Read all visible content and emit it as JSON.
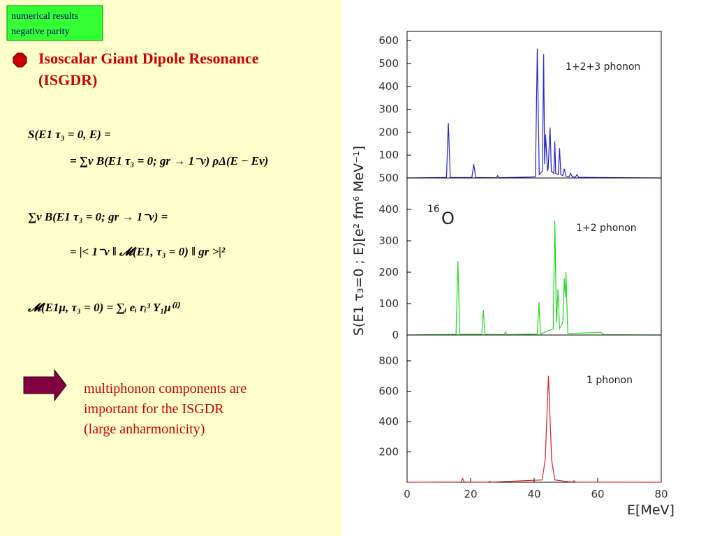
{
  "tag_box": [
    "numerical results",
    "negative parity"
  ],
  "heading": [
    "Isoscalar Giant Dipole Resonance",
    "(ISGDR)"
  ],
  "equations": [
    "S(E1 τ₃ = 0, E) =",
    "= ∑ν B(E1 τ₃ = 0; gr → 1⁻ν) ρΔ(E − Eν)",
    "∑ν B(E1 τ₃ = 0; gr → 1⁻ν) =",
    "= |< 1⁻ν ‖ 𝓜(E1, τ₃ = 0) ‖ gr >|²",
    "𝓜(E1μ, τ₃ = 0) = ∑ᵢ eᵢ rᵢ³ Y₁μ⁽ⁱ⁾"
  ],
  "note": [
    "multiphonon components are",
    "important for the ISGDR",
    "(large anharmonicity)"
  ],
  "figure": {
    "ylabel": "S(E1 τ₃=0 ; E)[e² fm⁶ MeV⁻¹]",
    "xlabel": "E[MeV]",
    "annotation": {
      "mass": "16",
      "symbol": "O"
    }
  },
  "chart_data": [
    {
      "type": "line",
      "label": "1+2+3 phonon",
      "color": "#2323c8",
      "x": [
        0,
        12.4,
        13,
        13.6,
        20.4,
        21,
        21.6,
        28,
        28.5,
        29,
        40.4,
        41,
        41.6,
        42.6,
        43,
        43.3,
        43.6,
        44.2,
        44.4,
        45,
        45.4,
        46.2,
        46.5,
        46.8,
        47.6,
        48,
        48.4,
        49,
        49.5,
        50,
        51,
        51.5,
        52,
        53,
        53.5,
        54,
        60,
        80
      ],
      "values": [
        0,
        2,
        240,
        2,
        2,
        60,
        2,
        1,
        10,
        1,
        5,
        565,
        15,
        30,
        540,
        60,
        190,
        30,
        40,
        220,
        30,
        20,
        160,
        20,
        15,
        130,
        15,
        10,
        40,
        8,
        5,
        20,
        5,
        4,
        15,
        3,
        2,
        0
      ],
      "xlim": [
        0,
        80
      ],
      "ylim": [
        0,
        640
      ],
      "yticks": [
        100,
        200,
        300,
        400,
        500,
        600
      ]
    },
    {
      "type": "line",
      "label": "1+2 phonon",
      "color": "#22d822",
      "x": [
        0,
        15.4,
        16,
        16.6,
        23.5,
        24,
        24.5,
        30.5,
        31,
        31.5,
        41,
        41.5,
        42,
        46,
        46.5,
        47,
        47.5,
        48,
        49,
        49.5,
        49.8,
        50,
        50.6,
        61,
        62,
        80
      ],
      "values": [
        0,
        2,
        235,
        2,
        2,
        80,
        2,
        1,
        10,
        1,
        3,
        105,
        3,
        20,
        365,
        40,
        145,
        20,
        40,
        180,
        120,
        200,
        5,
        8,
        1,
        0
      ],
      "xlim": [
        0,
        80
      ],
      "ylim": [
        0,
        500
      ],
      "yticks": [
        0,
        100,
        200,
        300,
        400,
        500
      ]
    },
    {
      "type": "line",
      "label": "1 phonon",
      "color": "#d82222",
      "x": [
        0,
        17,
        17.5,
        18,
        25.5,
        26,
        26.5,
        42.5,
        43.5,
        44.5,
        45.5,
        46.5,
        52,
        52.5,
        53,
        80
      ],
      "values": [
        0,
        2,
        25,
        2,
        1,
        5,
        1,
        15,
        150,
        700,
        150,
        15,
        1,
        10,
        1,
        0
      ],
      "xlim": [
        0,
        80
      ],
      "ylim": [
        0,
        970
      ],
      "yticks": [
        200,
        400,
        600,
        800
      ],
      "xticks": [
        0,
        20,
        40,
        60,
        80
      ]
    }
  ]
}
